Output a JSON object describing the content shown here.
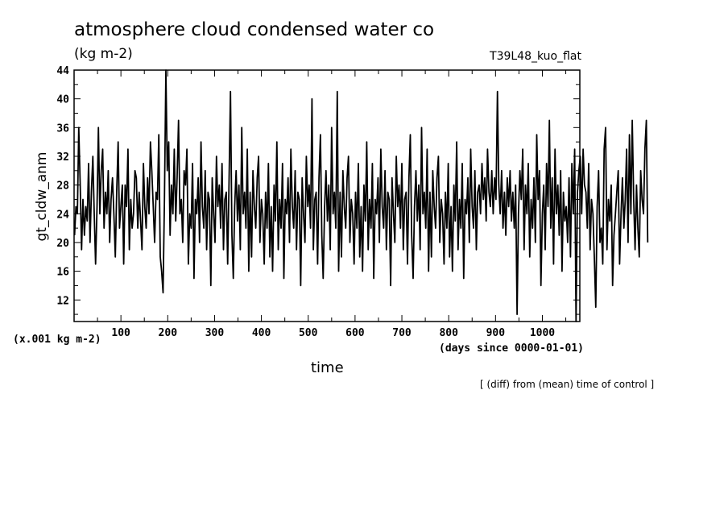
{
  "header": {
    "title": "atmosphere cloud condensed water co",
    "units": "(kg m-2)",
    "run_label": "T39L48_kuo_flat"
  },
  "axes": {
    "scale_note": "(x.001 kg m-2)",
    "x_units_note": "(days since 0000-01-01)",
    "footer_note": "[ (diff) from (mean) time of control ]"
  },
  "chart_data": {
    "type": "line",
    "xlabel": "time",
    "ylabel": "gt_cldw_anm",
    "xlim": [
      0,
      1080
    ],
    "ylim": [
      9,
      44
    ],
    "x_ticks": [
      100,
      200,
      300,
      400,
      500,
      600,
      700,
      800,
      900,
      1000
    ],
    "y_ticks": [
      12,
      16,
      20,
      24,
      28,
      32,
      36,
      40,
      44
    ],
    "grid": false,
    "series": [
      {
        "color": "#000000",
        "x_start": 1,
        "x_step": 3,
        "values": [
          21,
          25,
          24,
          36,
          28,
          19,
          26,
          21,
          25,
          23,
          31,
          20,
          27,
          32,
          24,
          17,
          25,
          36,
          24,
          30,
          33,
          22,
          27,
          24,
          30,
          20,
          26,
          29,
          24,
          18,
          27,
          34,
          22,
          25,
          28,
          17,
          28,
          25,
          33,
          19,
          26,
          22,
          24,
          30,
          29,
          22,
          27,
          23,
          19,
          31,
          25,
          22,
          29,
          24,
          34,
          30,
          25,
          20,
          27,
          26,
          35,
          18,
          16,
          13,
          26,
          44,
          30,
          34,
          21,
          28,
          24,
          33,
          23,
          29,
          37,
          24,
          26,
          20,
          30,
          28,
          33,
          17,
          24,
          22,
          31,
          15,
          26,
          24,
          29,
          20,
          34,
          25,
          22,
          30,
          19,
          27,
          26,
          14,
          29,
          24,
          20,
          32,
          25,
          28,
          22,
          31,
          19,
          26,
          27,
          17,
          29,
          41,
          21,
          15,
          25,
          30,
          23,
          28,
          19,
          36,
          24,
          27,
          22,
          33,
          16,
          27,
          18,
          30,
          25,
          22,
          29,
          32,
          20,
          26,
          24,
          17,
          27,
          22,
          31,
          18,
          25,
          16,
          28,
          23,
          34,
          19,
          26,
          22,
          31,
          15,
          26,
          24,
          29,
          20,
          33,
          25,
          22,
          30,
          19,
          27,
          26,
          14,
          29,
          24,
          20,
          32,
          25,
          28,
          22,
          40,
          19,
          26,
          27,
          17,
          29,
          35,
          21,
          15,
          25,
          30,
          23,
          28,
          19,
          36,
          24,
          27,
          22,
          41,
          16,
          27,
          18,
          30,
          25,
          22,
          29,
          32,
          20,
          26,
          24,
          17,
          27,
          22,
          31,
          18,
          25,
          16,
          28,
          23,
          34,
          19,
          26,
          22,
          31,
          15,
          26,
          24,
          29,
          20,
          33,
          25,
          22,
          30,
          19,
          27,
          26,
          14,
          29,
          24,
          20,
          32,
          25,
          28,
          22,
          31,
          19,
          26,
          27,
          17,
          29,
          35,
          21,
          15,
          25,
          30,
          23,
          28,
          19,
          36,
          24,
          27,
          22,
          33,
          16,
          27,
          18,
          30,
          25,
          22,
          29,
          32,
          20,
          26,
          24,
          17,
          27,
          22,
          31,
          18,
          25,
          16,
          28,
          23,
          34,
          19,
          26,
          22,
          31,
          15,
          26,
          24,
          29,
          20,
          33,
          25,
          22,
          30,
          19,
          27,
          28,
          24,
          31,
          26,
          29,
          23,
          33,
          27,
          25,
          30,
          24,
          29,
          26,
          41,
          28,
          24,
          30,
          22,
          27,
          21,
          29,
          25,
          30,
          23,
          27,
          22,
          28,
          10,
          24,
          30,
          26,
          33,
          19,
          28,
          24,
          31,
          18,
          26,
          22,
          29,
          20,
          35,
          26,
          30,
          14,
          24,
          28,
          19,
          31,
          25,
          37,
          22,
          29,
          17,
          33,
          24,
          28,
          21,
          30,
          16,
          27,
          23,
          25,
          20,
          29,
          18,
          31,
          24,
          33,
          9,
          27,
          30,
          32,
          24,
          33,
          28,
          27,
          22,
          31,
          19,
          26,
          24,
          18,
          11,
          25,
          30,
          20,
          22,
          17,
          33,
          36,
          19,
          26,
          23,
          28,
          14,
          21,
          24,
          27,
          30,
          17,
          24,
          29,
          22,
          26,
          33,
          20,
          35,
          24,
          37,
          26,
          19,
          28,
          22,
          18,
          30,
          26,
          24,
          33,
          37,
          20
        ]
      }
    ]
  }
}
